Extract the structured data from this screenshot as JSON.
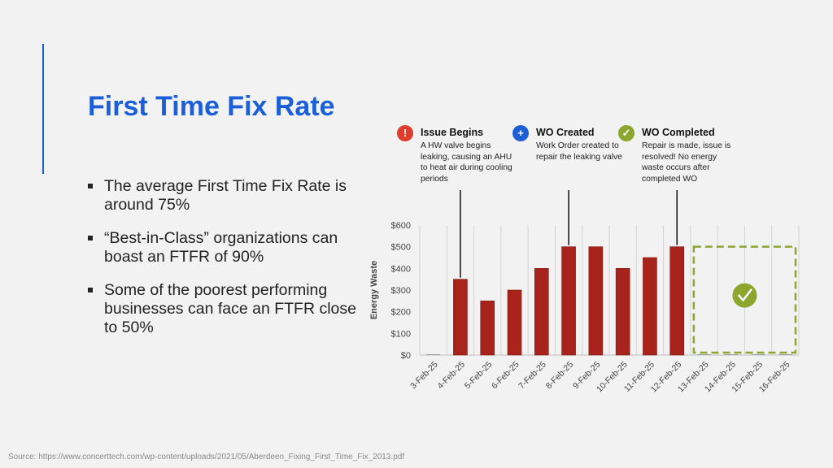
{
  "slide": {
    "title": "First Time Fix Rate",
    "bullets": [
      "The average First Time Fix Rate is around 75%",
      "“Best-in-Class” organizations can boast an FTFR of 90%",
      "Some of the poorest performing businesses can face an FTFR close to 50%"
    ],
    "source": "Source: https://www.concerttech.com/wp-content/uploads/2021/05/Aberdeen_Fixing_First_Time_Fix_2013.pdf"
  },
  "annotations": [
    {
      "title": "Issue Begins",
      "description": "A HW valve begins leaking, causing an AHU to heat air during cooling periods",
      "icon": "exclamation-icon",
      "color": "#e03c2c",
      "glyph": "!",
      "points_to": "4-Feb-25"
    },
    {
      "title": "WO Created",
      "description": "Work Order created to repair the leaking valve",
      "icon": "plus-icon",
      "color": "#1f5fd6",
      "glyph": "+",
      "points_to": "8-Feb-25"
    },
    {
      "title": "WO Completed",
      "description": "Repair is made, issue is resolved! No energy waste occurs after completed WO",
      "icon": "checkmark-icon",
      "color": "#8ca62e",
      "glyph": "✓",
      "points_to": "12-Feb-25"
    }
  ],
  "chart_data": {
    "type": "bar",
    "ylabel": "Energy Waste",
    "xlabel": "",
    "categories": [
      "3-Feb-25",
      "4-Feb-25",
      "5-Feb-25",
      "6-Feb-25",
      "7-Feb-25",
      "8-Feb-25",
      "9-Feb-25",
      "10-Feb-25",
      "11-Feb-25",
      "12-Feb-25",
      "13-Feb-25",
      "14-Feb-25",
      "15-Feb-25",
      "16-Feb-25"
    ],
    "values": [
      0,
      350,
      250,
      300,
      400,
      500,
      500,
      400,
      450,
      500,
      0,
      0,
      0,
      0
    ],
    "ylim": [
      0,
      600
    ],
    "yticks": [
      "$0",
      "$100",
      "$200",
      "$300",
      "$400",
      "$500",
      "$600"
    ],
    "bar_color": "#a8231c",
    "grid": true,
    "resolved_range": [
      "13-Feb-25",
      "16-Feb-25"
    ],
    "resolved_color": "#8ca62e",
    "resolved_icon": "checkmark-icon"
  }
}
